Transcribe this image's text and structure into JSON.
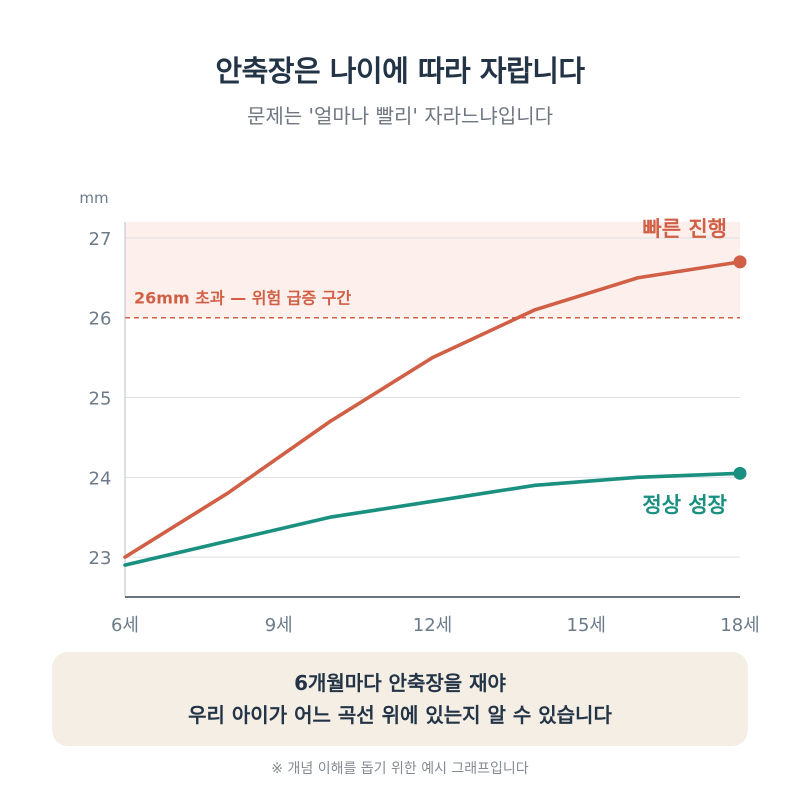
{
  "title": "안축장은 나이에 따라 자랍니다",
  "subtitle": "문제는 '얼마나 빨리' 자라느냐입니다",
  "chart_data": {
    "type": "line",
    "ylabel": "mm",
    "x": [
      6,
      8,
      10,
      12,
      14,
      16,
      18
    ],
    "x_ticks": [
      6,
      9,
      12,
      15,
      18
    ],
    "x_tick_labels": [
      "6세",
      "9세",
      "12세",
      "15세",
      "18세"
    ],
    "xlim": [
      6,
      18
    ],
    "ylim": [
      22.5,
      27.2
    ],
    "y_ticks": [
      23,
      24,
      25,
      26,
      27
    ],
    "grid": true,
    "series": [
      {
        "name": "빠른 진행",
        "color": "#d15f45",
        "values": [
          23.0,
          23.8,
          24.7,
          25.5,
          26.1,
          26.5,
          26.7
        ]
      },
      {
        "name": "정상 성장",
        "color": "#1a9080",
        "values": [
          22.9,
          23.2,
          23.5,
          23.7,
          23.9,
          24.0,
          24.05
        ]
      }
    ],
    "threshold": {
      "value": 26,
      "label": "26mm 초과 — 위험 급증 구간",
      "color": "#d15f45",
      "band_top": 27.2,
      "band_color": "#fdf0ec"
    }
  },
  "callout": {
    "line1": "6개월마다 안축장을 재야",
    "line2": "우리 아이가 어느 곡선 위에 있는지 알 수 있습니다"
  },
  "footnote": "※ 개념 이해를 돕기 위한 예시 그래프입니다"
}
